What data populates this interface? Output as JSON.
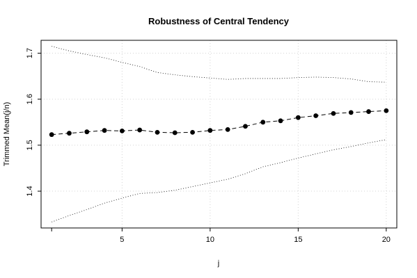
{
  "chart_data": {
    "type": "line",
    "title": "Robustness of Central Tendency",
    "xlabel": "j",
    "ylabel": "Trimmed Mean(j/n)",
    "xlim": [
      0.4,
      20.6
    ],
    "ylim": [
      1.32,
      1.728
    ],
    "x_ticks": [
      5,
      10,
      15,
      20
    ],
    "y_ticks": [
      1.4,
      1.5,
      1.6,
      1.7
    ],
    "grid": true,
    "x": [
      1,
      2,
      3,
      4,
      5,
      6,
      7,
      8,
      9,
      10,
      11,
      12,
      13,
      14,
      15,
      16,
      17,
      18,
      19,
      20
    ],
    "series": [
      {
        "style": "points-dashed",
        "values": [
          1.523,
          1.526,
          1.529,
          1.532,
          1.531,
          1.533,
          1.528,
          1.527,
          1.528,
          1.532,
          1.534,
          1.541,
          1.55,
          1.553,
          1.56,
          1.564,
          1.569,
          1.571,
          1.573,
          1.575
        ]
      },
      {
        "style": "dotted",
        "values": [
          1.715,
          1.705,
          1.697,
          1.69,
          1.68,
          1.671,
          1.658,
          1.653,
          1.649,
          1.646,
          1.643,
          1.645,
          1.645,
          1.645,
          1.647,
          1.648,
          1.647,
          1.644,
          1.638,
          1.637
        ]
      },
      {
        "style": "dotted",
        "values": [
          1.333,
          1.347,
          1.36,
          1.374,
          1.385,
          1.395,
          1.397,
          1.402,
          1.41,
          1.418,
          1.426,
          1.438,
          1.453,
          1.462,
          1.472,
          1.481,
          1.49,
          1.497,
          1.505,
          1.512
        ]
      }
    ]
  }
}
